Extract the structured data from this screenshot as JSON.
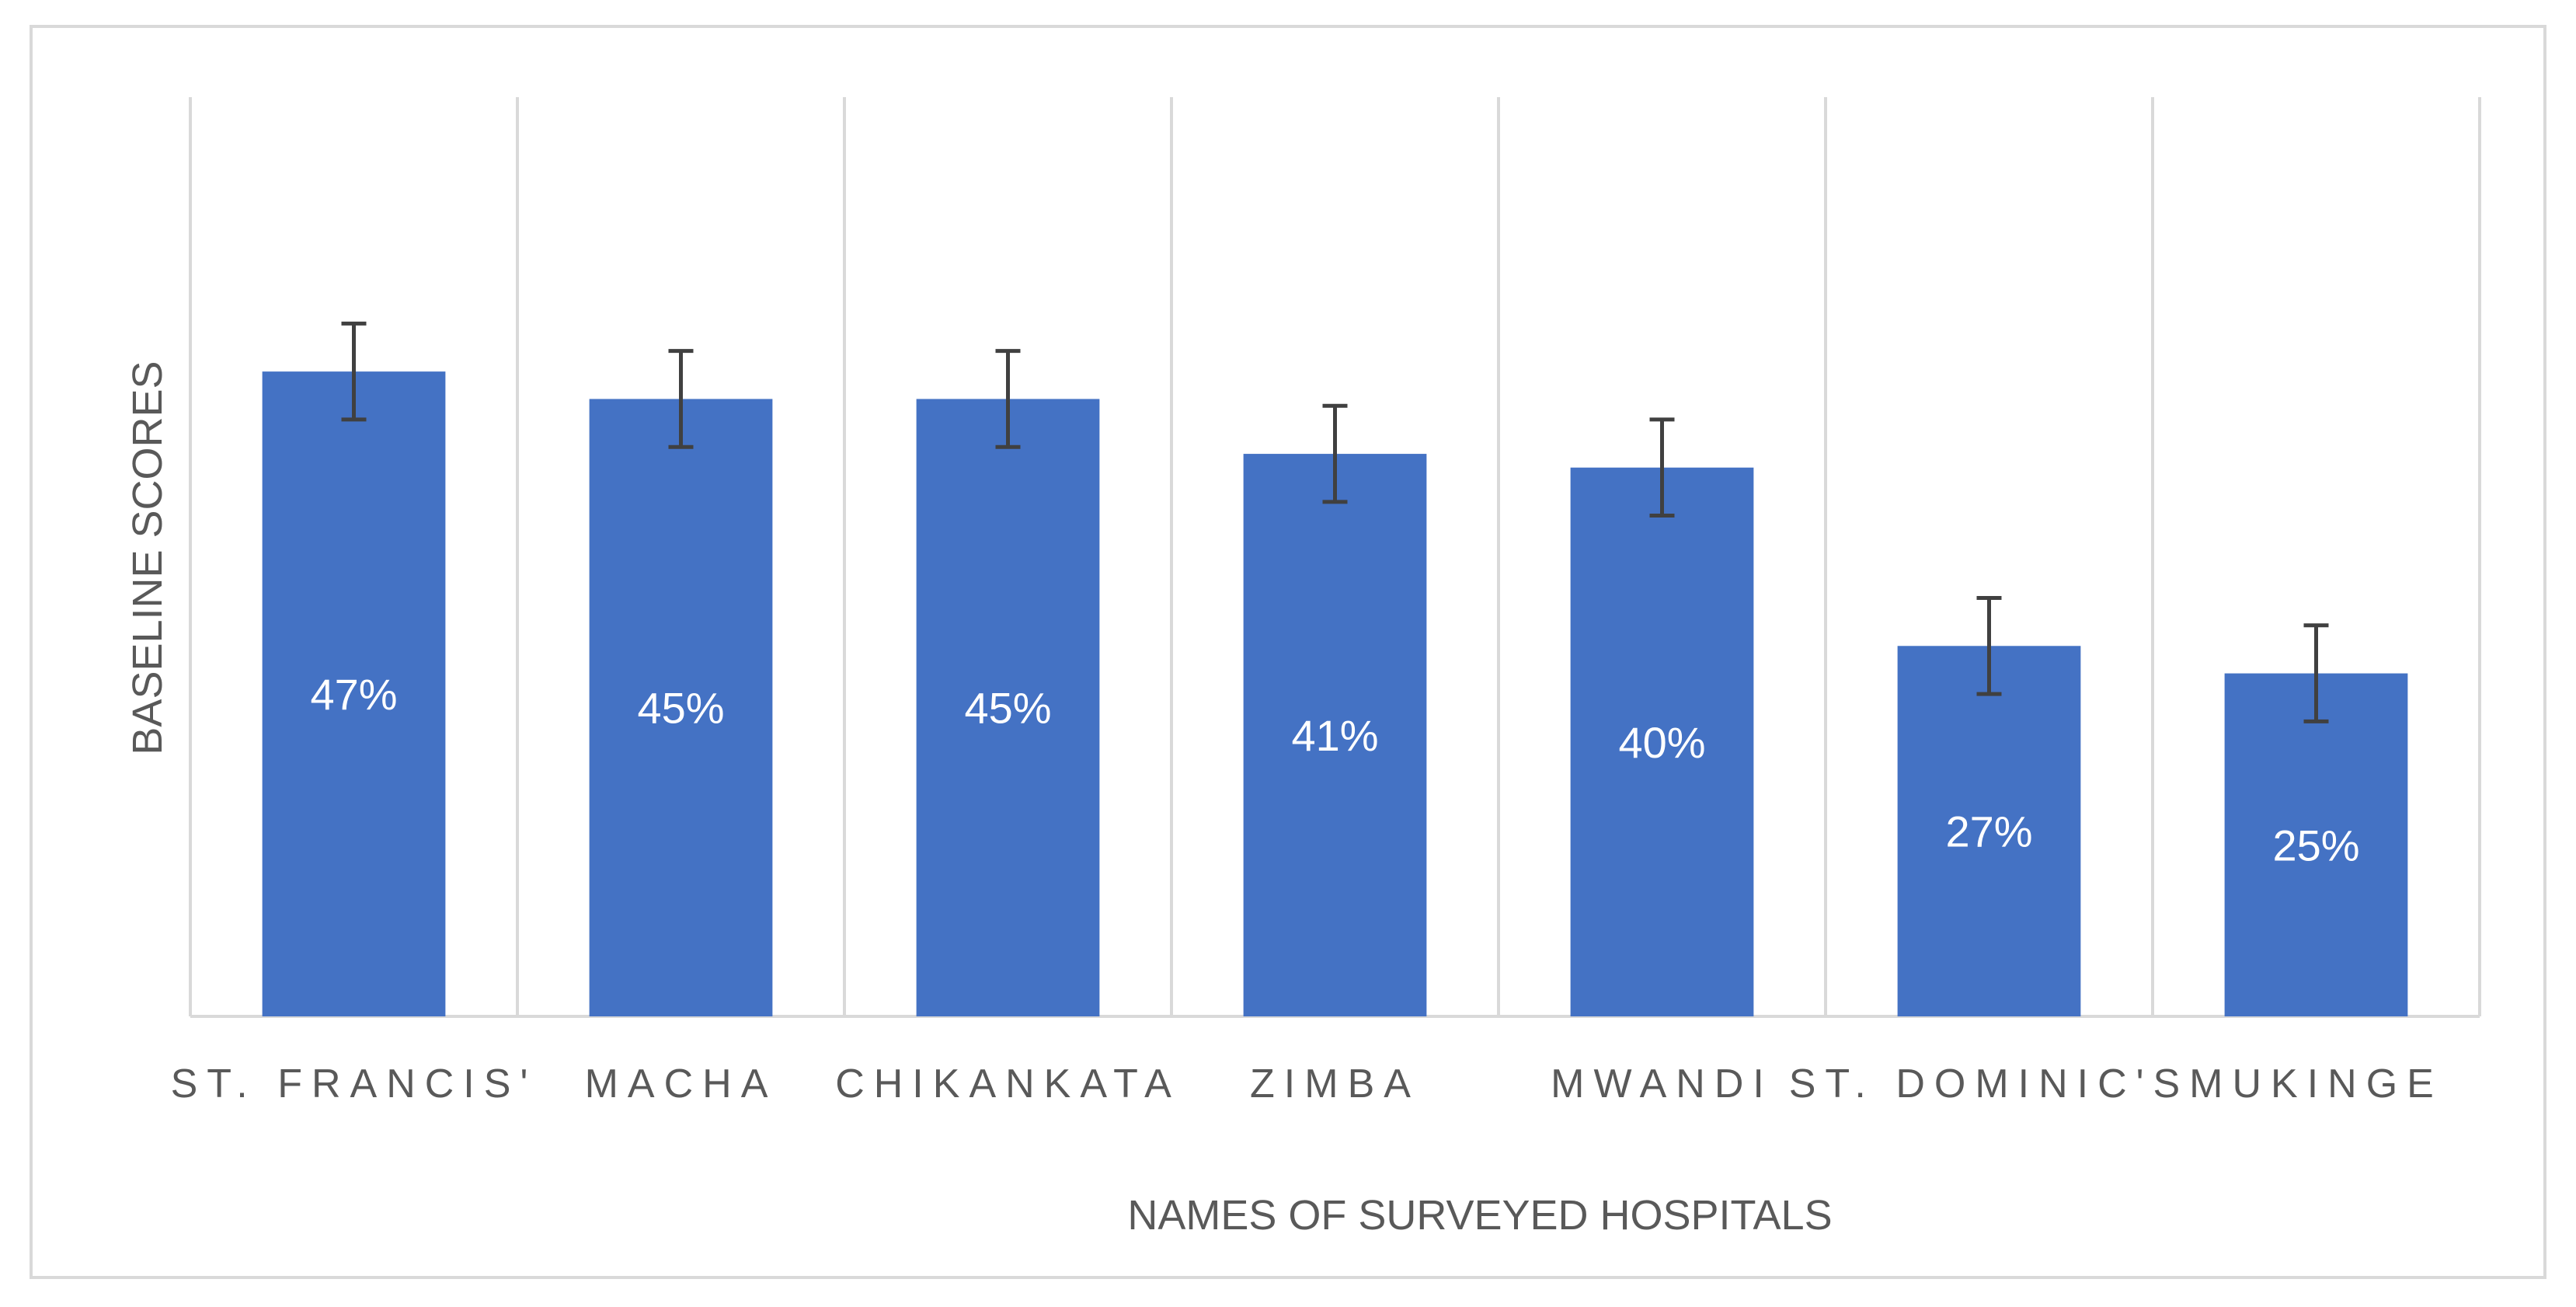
{
  "chart_data": {
    "type": "bar",
    "categories": [
      "ST. FRANCIS'",
      "MACHA",
      "CHIKANKATA",
      "ZIMBA",
      "MWANDI",
      "ST. DOMINIC'S",
      "MUKINGE"
    ],
    "values": [
      47,
      45,
      45,
      41,
      40,
      27,
      25
    ],
    "data_labels": [
      "47%",
      "45%",
      "45%",
      "41%",
      "40%",
      "27%",
      "25%"
    ],
    "error_bars": [
      3.5,
      3.5,
      3.5,
      3.5,
      3.5,
      3.5,
      3.5
    ],
    "xlabel": "NAMES OF SURVEYED HOSPITALS",
    "ylabel": "BASELINE SCORES",
    "ylim": [
      0,
      67
    ],
    "grid": "vertical",
    "legend": "none",
    "colors": {
      "bar": "#4472c4",
      "error_bar": "#404040",
      "gridline": "#d9d9d9",
      "text": "#595959",
      "data_label": "#ffffff"
    }
  }
}
